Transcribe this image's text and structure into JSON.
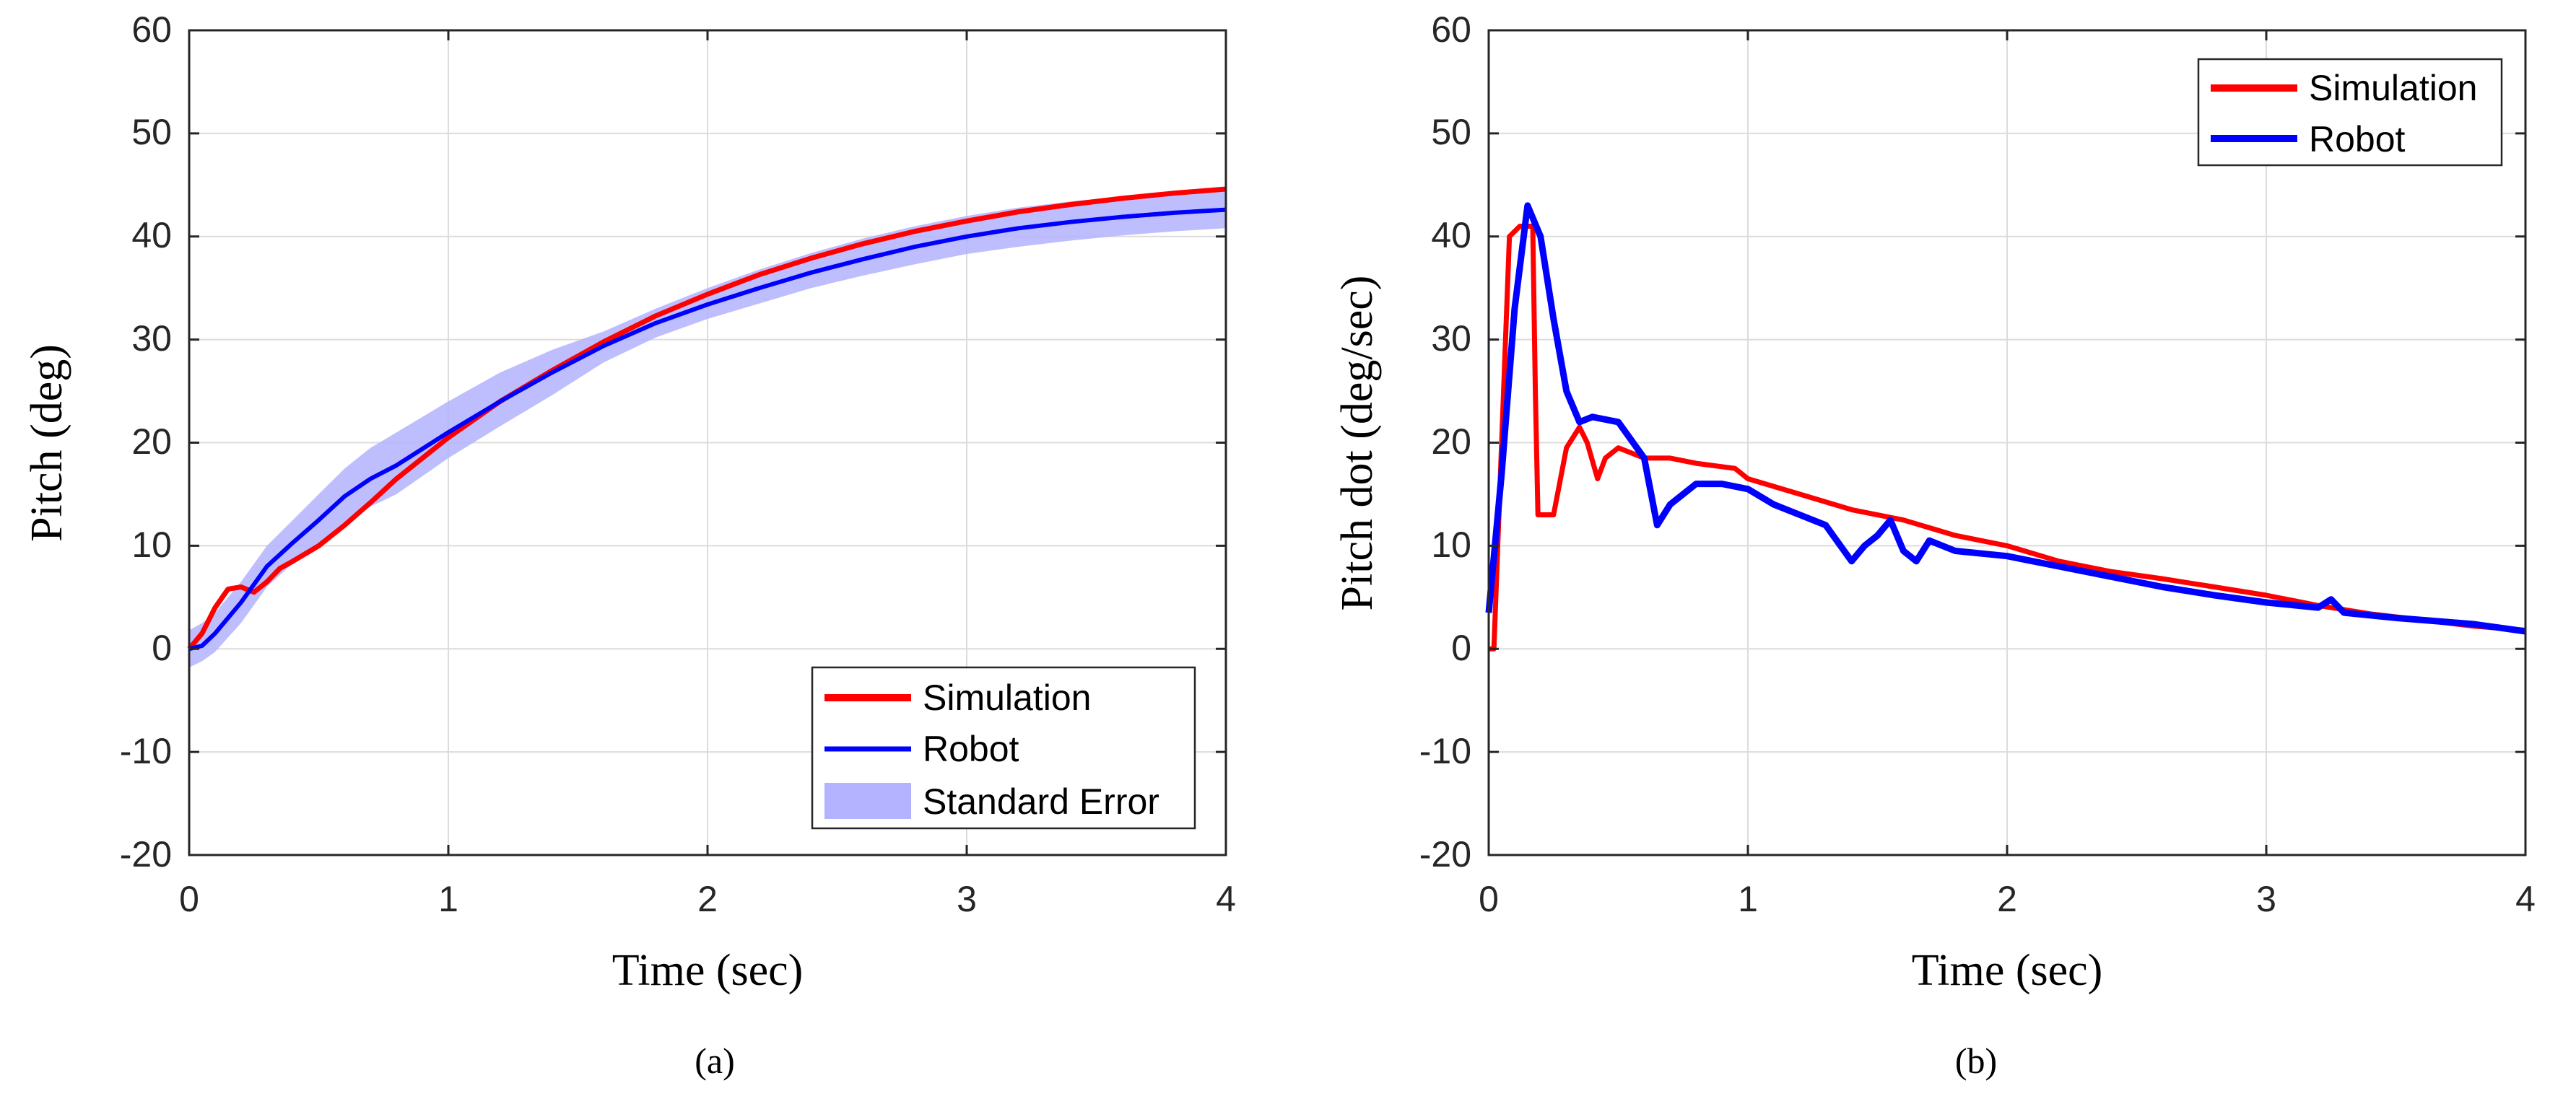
{
  "chart_data": [
    {
      "type": "line",
      "caption": "(a)",
      "xlabel": "Time (sec)",
      "ylabel": "Pitch (deg)",
      "xlim": [
        0,
        4
      ],
      "ylim": [
        -20,
        60
      ],
      "xticks": [
        "0",
        "1",
        "2",
        "3",
        "4"
      ],
      "yticks": [
        "-20",
        "-10",
        "0",
        "10",
        "20",
        "30",
        "40",
        "50",
        "60"
      ],
      "grid": true,
      "legend_position": "bottom-right",
      "series": [
        {
          "name": "Simulation",
          "color": "#ff0000",
          "x": [
            0,
            0.05,
            0.1,
            0.15,
            0.2,
            0.25,
            0.3,
            0.35,
            0.4,
            0.5,
            0.6,
            0.7,
            0.8,
            1.0,
            1.2,
            1.4,
            1.6,
            1.8,
            2.0,
            2.2,
            2.4,
            2.6,
            2.8,
            3.0,
            3.2,
            3.4,
            3.6,
            3.8,
            4.0
          ],
          "y": [
            0,
            1.5,
            4.0,
            5.8,
            6.0,
            5.5,
            6.5,
            7.8,
            8.5,
            10.0,
            12.0,
            14.2,
            16.5,
            20.5,
            24.0,
            27.0,
            29.8,
            32.3,
            34.4,
            36.3,
            37.9,
            39.3,
            40.5,
            41.5,
            42.4,
            43.1,
            43.7,
            44.2,
            44.6
          ]
        },
        {
          "name": "Robot",
          "color": "#0000ff",
          "x": [
            0,
            0.05,
            0.1,
            0.2,
            0.3,
            0.4,
            0.5,
            0.6,
            0.7,
            0.8,
            1.0,
            1.2,
            1.4,
            1.6,
            1.8,
            2.0,
            2.2,
            2.4,
            2.6,
            2.8,
            3.0,
            3.2,
            3.4,
            3.6,
            3.8,
            4.0
          ],
          "y": [
            0,
            0.3,
            1.5,
            4.5,
            8.0,
            10.3,
            12.5,
            14.8,
            16.5,
            17.8,
            21.0,
            24.0,
            26.8,
            29.4,
            31.6,
            33.4,
            35.0,
            36.5,
            37.8,
            39.0,
            40.0,
            40.8,
            41.4,
            41.9,
            42.3,
            42.6
          ]
        }
      ],
      "standard_error": {
        "name": "Standard Error",
        "color": "#b3b3ff",
        "x": [
          0,
          0.05,
          0.1,
          0.2,
          0.3,
          0.4,
          0.5,
          0.6,
          0.7,
          0.8,
          1.0,
          1.2,
          1.4,
          1.6,
          1.8,
          2.0,
          2.2,
          2.4,
          2.6,
          2.8,
          3.0,
          3.2,
          3.4,
          3.6,
          3.8,
          4.0
        ],
        "upper": [
          1.8,
          2.5,
          3.5,
          6.5,
          10.0,
          12.5,
          15.0,
          17.5,
          19.5,
          21.0,
          24.0,
          26.8,
          29.0,
          30.8,
          33.0,
          35.0,
          36.8,
          38.4,
          39.8,
          41.0,
          42.0,
          42.8,
          43.4,
          43.9,
          44.3,
          44.6
        ],
        "lower": [
          -1.8,
          -1.2,
          -0.3,
          2.5,
          6.0,
          8.3,
          10.2,
          12.3,
          13.8,
          15.0,
          18.5,
          21.6,
          24.6,
          27.8,
          30.2,
          32.0,
          33.5,
          35.0,
          36.2,
          37.3,
          38.3,
          39.0,
          39.6,
          40.1,
          40.5,
          40.8
        ]
      }
    },
    {
      "type": "line",
      "caption": "(b)",
      "xlabel": "Time (sec)",
      "ylabel": "Pitch dot (deg/sec)",
      "xlim": [
        0,
        4
      ],
      "ylim": [
        -20,
        60
      ],
      "xticks": [
        "0",
        "1",
        "2",
        "3",
        "4"
      ],
      "yticks": [
        "-20",
        "-10",
        "0",
        "10",
        "20",
        "30",
        "40",
        "50",
        "60"
      ],
      "grid": true,
      "legend_position": "top-right",
      "series": [
        {
          "name": "Simulation",
          "color": "#ff0000",
          "x": [
            0,
            0.02,
            0.05,
            0.08,
            0.12,
            0.17,
            0.18,
            0.19,
            0.23,
            0.25,
            0.3,
            0.35,
            0.38,
            0.42,
            0.45,
            0.5,
            0.55,
            0.6,
            0.7,
            0.8,
            0.95,
            1.0,
            1.2,
            1.4,
            1.6,
            1.8,
            2.0,
            2.2,
            2.4,
            2.6,
            2.8,
            3.0,
            3.2,
            3.4,
            3.6,
            3.8,
            4.0
          ],
          "y": [
            0,
            0,
            20,
            40,
            41,
            41,
            25,
            13,
            13,
            13,
            19.5,
            21.5,
            20,
            16.5,
            18.5,
            19.5,
            19,
            18.5,
            18.5,
            18,
            17.5,
            16.5,
            15,
            13.5,
            12.5,
            11,
            10,
            8.5,
            7.5,
            6.8,
            6,
            5.2,
            4.2,
            3.4,
            2.8,
            2.2,
            1.8
          ]
        },
        {
          "name": "Robot",
          "color": "#0000ff",
          "x": [
            0,
            0.05,
            0.1,
            0.15,
            0.2,
            0.25,
            0.3,
            0.35,
            0.4,
            0.5,
            0.6,
            0.65,
            0.7,
            0.8,
            0.9,
            1.0,
            1.1,
            1.2,
            1.3,
            1.4,
            1.45,
            1.5,
            1.55,
            1.6,
            1.65,
            1.7,
            1.8,
            2.0,
            2.2,
            2.4,
            2.6,
            2.8,
            3.0,
            3.2,
            3.25,
            3.3,
            3.5,
            3.7,
            3.8,
            4.0
          ],
          "y": [
            3.5,
            17,
            33,
            43,
            40,
            32,
            25,
            22,
            22.5,
            22,
            18.5,
            12,
            14,
            16,
            16,
            15.5,
            14,
            13,
            12,
            8.5,
            10,
            11,
            12.5,
            9.5,
            8.5,
            10.5,
            9.5,
            9,
            8,
            7,
            6,
            5.2,
            4.5,
            4,
            4.8,
            3.5,
            3,
            2.6,
            2.4,
            1.7
          ]
        }
      ]
    }
  ]
}
